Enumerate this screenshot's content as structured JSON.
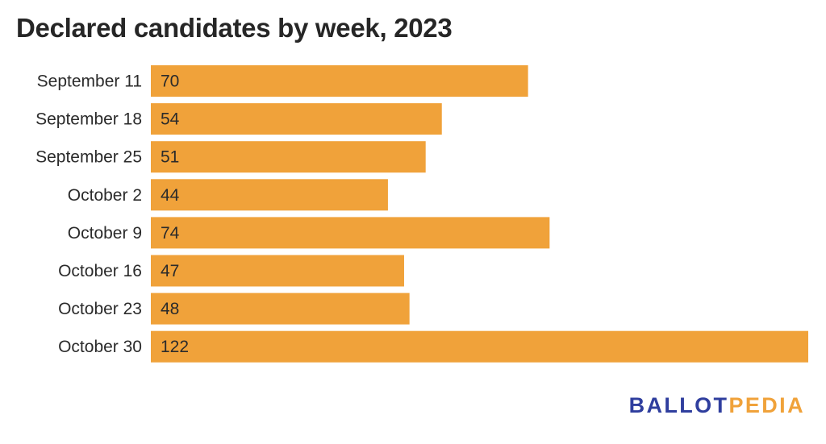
{
  "chart_data": {
    "type": "bar",
    "orientation": "horizontal",
    "title": "Declared candidates by week, 2023",
    "xlabel": "",
    "ylabel": "",
    "categories": [
      "September 11",
      "September 18",
      "September 25",
      "October 2",
      "October 9",
      "October 16",
      "October 23",
      "October 30"
    ],
    "values": [
      70,
      54,
      51,
      44,
      74,
      47,
      48,
      122
    ],
    "xlim": [
      0,
      122
    ],
    "grid": false,
    "legend": "none",
    "bar_color": "#f0a23a"
  },
  "branding": {
    "logo_part1": "BALLOT",
    "logo_part2": "PEDIA",
    "logo_color_1": "#2f3e9e",
    "logo_color_2": "#f0a23a"
  }
}
